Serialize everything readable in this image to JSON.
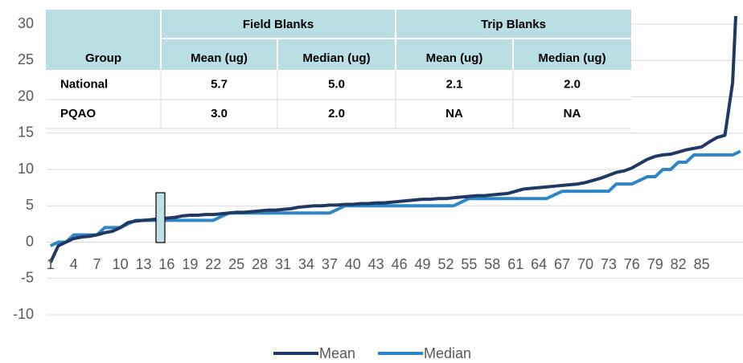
{
  "chart_data": {
    "type": "line",
    "categories": [
      1,
      null,
      null,
      4,
      null,
      null,
      7,
      null,
      null,
      10,
      null,
      null,
      13,
      null,
      null,
      16,
      null,
      null,
      19,
      null,
      null,
      22,
      null,
      null,
      25,
      null,
      null,
      28,
      null,
      null,
      31,
      null,
      null,
      34,
      null,
      null,
      37,
      null,
      null,
      40,
      null,
      null,
      43,
      null,
      null,
      46,
      null,
      null,
      49,
      null,
      null,
      52,
      null,
      null,
      55,
      null,
      null,
      58,
      null,
      null,
      61,
      null,
      null,
      64,
      null,
      null,
      67,
      null,
      null,
      70,
      null,
      null,
      73,
      null,
      null,
      76,
      null,
      null,
      79,
      null,
      null,
      82,
      null,
      null,
      85,
      null,
      null,
      null,
      null,
      null
    ],
    "series": [
      {
        "name": "Mean",
        "color": "#1f3864",
        "values": [
          -2.8,
          -0.5,
          0,
          0.5,
          0.7,
          0.8,
          1,
          1.3,
          1.5,
          2,
          2.7,
          2.9,
          3,
          3.1,
          3.2,
          3.3,
          3.4,
          3.6,
          3.7,
          3.7,
          3.8,
          3.8,
          3.9,
          4,
          4.1,
          4.1,
          4.2,
          4.3,
          4.4,
          4.4,
          4.5,
          4.6,
          4.8,
          4.9,
          5,
          5,
          5.1,
          5.1,
          5.2,
          5.2,
          5.3,
          5.3,
          5.4,
          5.4,
          5.5,
          5.6,
          5.7,
          5.8,
          5.9,
          5.9,
          6,
          6,
          6.1,
          6.2,
          6.3,
          6.4,
          6.4,
          6.5,
          6.6,
          6.7,
          7,
          7.3,
          7.4,
          7.5,
          7.6,
          7.7,
          7.8,
          7.9,
          8,
          8.2,
          8.5,
          8.8,
          9.2,
          9.6,
          9.8,
          10.2,
          10.8,
          11.4,
          11.8,
          12,
          12.1,
          12.4,
          12.7,
          12.9,
          13.1,
          13.8,
          14.4,
          14.7,
          22,
          45
        ]
      },
      {
        "name": "Median",
        "color": "#2e86c8",
        "values": [
          -0.5,
          0,
          0,
          1,
          1,
          1,
          1,
          2,
          2,
          2,
          2.5,
          3,
          3,
          3,
          3,
          3,
          3,
          3,
          3,
          3,
          3,
          3,
          3.5,
          4,
          4,
          4,
          4,
          4,
          4,
          4,
          4,
          4,
          4,
          4,
          4,
          4,
          4,
          4.5,
          5,
          5,
          5,
          5,
          5,
          5,
          5,
          5,
          5,
          5,
          5,
          5,
          5,
          5,
          5,
          5.5,
          6,
          6,
          6,
          6,
          6,
          6,
          6,
          6,
          6,
          6,
          6,
          6.5,
          7,
          7,
          7,
          7,
          7,
          7,
          7,
          8,
          8,
          8,
          8.5,
          9,
          9,
          10,
          10,
          11,
          11,
          12,
          12,
          12,
          12,
          12,
          12,
          12.5
        ]
      }
    ],
    "ylim": [
      -10,
      30
    ],
    "yticks": [
      -10,
      -5,
      0,
      5,
      10,
      15,
      20,
      25,
      30
    ],
    "grid": true,
    "legend": "bottom"
  },
  "table": {
    "header": [
      "Field Blanks",
      "Trip Blanks"
    ],
    "columns": [
      "Group",
      "Mean (ug)",
      "Median (ug)",
      "Mean (ug)",
      "Median (ug)"
    ],
    "rows": [
      [
        "National",
        "5.7",
        "5.0",
        "2.1",
        "2.0"
      ],
      [
        "PQAO",
        "3.0",
        "2.0",
        "NA",
        "NA"
      ]
    ]
  }
}
